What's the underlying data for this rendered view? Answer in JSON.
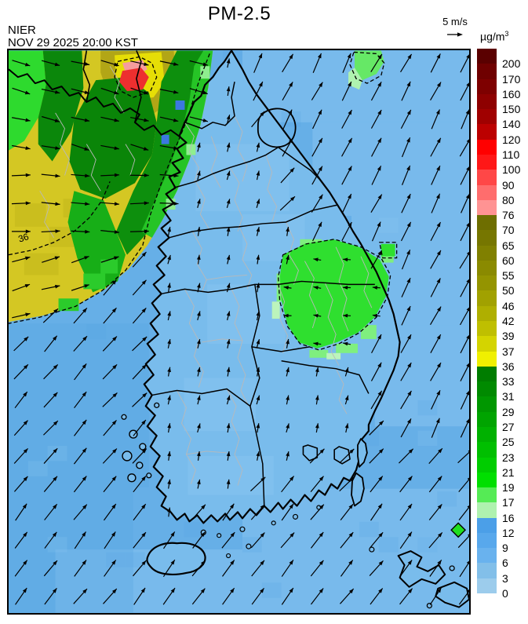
{
  "header": {
    "agency": "NIER",
    "datetime": "NOV 29 2025 20:00 KST",
    "title": "PM-2.5",
    "wind_reference_label": "5 m/s",
    "unit_base": "µg/m",
    "unit_exp": "3"
  },
  "map": {
    "contour_label": "36"
  },
  "chart_data": {
    "type": "heatmap",
    "title": "PM-2.5",
    "subtitle": "NOV 29 2025 20:00 KST",
    "agency": "NIER",
    "unit": "µg/m³",
    "legend_position": "right",
    "colorbar": {
      "levels": [
        "200",
        "170",
        "160",
        "150",
        "140",
        "120",
        "110",
        "100",
        "90",
        "80",
        "76",
        "70",
        "65",
        "60",
        "55",
        "50",
        "46",
        "42",
        "39",
        "37",
        "36",
        "33",
        "31",
        "29",
        "27",
        "25",
        "23",
        "21",
        "19",
        "17",
        "16",
        "12",
        "9",
        "6",
        "3",
        "0"
      ],
      "colors": [
        "#5A0000",
        "#6F0000",
        "#7E0000",
        "#8E0000",
        "#A00000",
        "#BC0000",
        "#FF0000",
        "#FF1717",
        "#FF4747",
        "#FF6D6D",
        "#FF9393",
        "#6E6E00",
        "#767600",
        "#808000",
        "#8A8A00",
        "#949400",
        "#A1A100",
        "#AFAF00",
        "#BFBF00",
        "#D4D400",
        "#F0F000",
        "#007D00",
        "#008A00",
        "#009700",
        "#00A400",
        "#00B100",
        "#00BF00",
        "#00CD00",
        "#00DF00",
        "#55EB55",
        "#AFF2AF",
        "#4B9FE8",
        "#58A8EC",
        "#69B2EE",
        "#82BFE9",
        "#9CCCEC"
      ],
      "note": "top segment above 200 is darkest red; labels mark segment boundaries"
    },
    "wind": {
      "reference_label": "5 m/s",
      "grid_step_x": 38,
      "grid_step_y": 36,
      "zones": {
        "northwest": {
          "angle_deg_top": 14,
          "angle_deg_mid": 2,
          "angle_deg_low": -16,
          "length": 24
        },
        "land": {
          "angle_deg": -78,
          "length": 12
        },
        "southeast_patch": {
          "angle_deg": 186,
          "length": 10
        },
        "east_sea": {
          "angle_deg": -63,
          "length": 27
        },
        "sea": {
          "angle_deg": -48,
          "length": 26
        }
      }
    },
    "regions": [
      {
        "name": "northwest-high-band",
        "value_range_ugm3": "37-76",
        "colors": [
          "yellow",
          "olive",
          "dark-green"
        ]
      },
      {
        "name": "seoul-metro-hotspot",
        "value_range_ugm3": "90-150",
        "colors": [
          "red",
          "pink"
        ]
      },
      {
        "name": "southeast-gyeongbuk-patch",
        "value_range_ugm3": "17-27",
        "colors": [
          "green",
          "light-green"
        ]
      },
      {
        "name": "northeast-coastal-patch",
        "value_range_ugm3": "17-21",
        "colors": [
          "light-green"
        ]
      },
      {
        "name": "background-korea-and-seas",
        "value_range_ugm3": "0-16",
        "colors": [
          "light-blue",
          "blue"
        ]
      },
      {
        "name": "station-diamond-marker",
        "value_range_ugm3": "19-21",
        "colors": [
          "bright-green"
        ]
      }
    ],
    "field_colors": {
      "sea_base": "#66AFE7",
      "sea_light": "#8FC8F2",
      "sea_dark": "#58A5E3",
      "land_blue": "#79BCEC",
      "nw_yellow": "#D4C723",
      "nw_olive": "#B2A616",
      "bright_yellow": "#E6DE06",
      "dark_green": "#0A8508",
      "green": "#17AE17",
      "bright_green": "#2FDF2F",
      "pale_green": "#AFF2AF",
      "hotspot_red": "#ED2F2F",
      "hotspot_pink": "#F59D9D"
    }
  }
}
